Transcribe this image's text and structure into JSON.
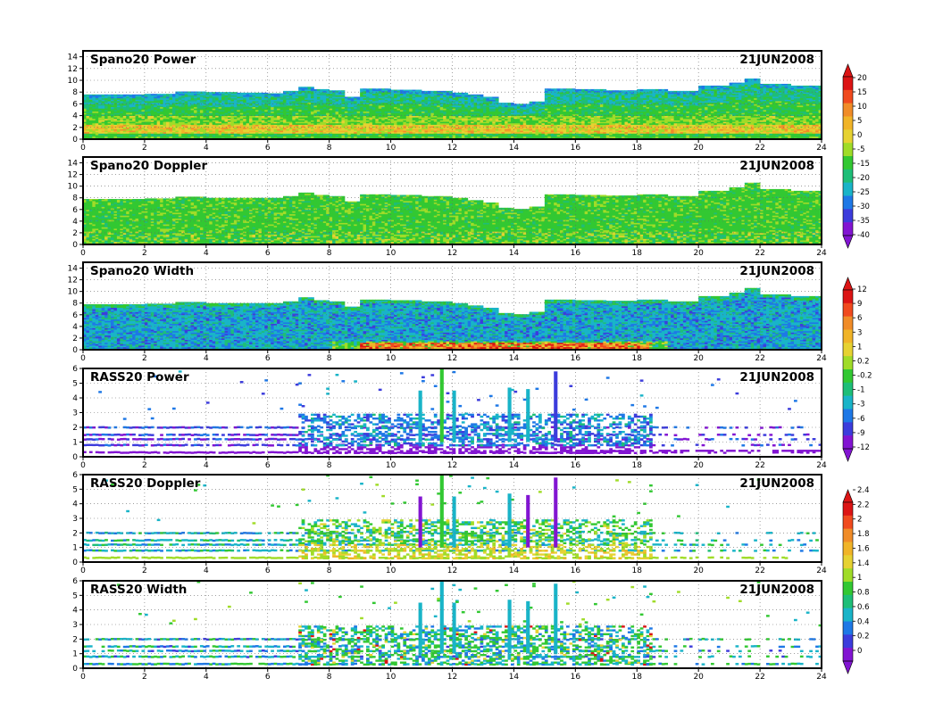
{
  "chart_data": [
    {
      "type": "heatmap",
      "title": "Spano20 Power",
      "date": "21JUN2008",
      "xlim": [
        0,
        24
      ],
      "x_ticks": [
        "0",
        "2",
        "4",
        "6",
        "8",
        "10",
        "12",
        "14",
        "16",
        "18",
        "20",
        "22",
        "24"
      ],
      "ylim": [
        0,
        15
      ],
      "y_ticks": [
        "0",
        "2",
        "4",
        "6",
        "8",
        "10",
        "12",
        "14"
      ],
      "colorbar": {
        "labels": [
          "20",
          "15",
          "10",
          "5",
          "0",
          "-5",
          "-15",
          "-20",
          "-25",
          "-30",
          "-35",
          "-40"
        ],
        "colors": [
          "#dc1414",
          "#f04a1e",
          "#f08c28",
          "#f0b428",
          "#e6d232",
          "#a0dc28",
          "#32c832",
          "#1ebe78",
          "#19b4c8",
          "#1e78e6",
          "#3c3cdc",
          "#8214d2"
        ]
      },
      "top_profile": [
        [
          0,
          7.6
        ],
        [
          2,
          7.7
        ],
        [
          3,
          8.1
        ],
        [
          4,
          8.0
        ],
        [
          5,
          7.9
        ],
        [
          6,
          7.8
        ],
        [
          6.5,
          8.2
        ],
        [
          7,
          8.9
        ],
        [
          7.5,
          8.5
        ],
        [
          8,
          8.3
        ],
        [
          8.5,
          7.2
        ],
        [
          9,
          8.6
        ],
        [
          10,
          8.4
        ],
        [
          11,
          8.2
        ],
        [
          12,
          7.9
        ],
        [
          12.5,
          7.6
        ],
        [
          13,
          7.2
        ],
        [
          13.5,
          6.2
        ],
        [
          14,
          6.0
        ],
        [
          14.5,
          6.4
        ],
        [
          15,
          8.6
        ],
        [
          16,
          8.5
        ],
        [
          17,
          8.3
        ],
        [
          18,
          8.5
        ],
        [
          19,
          8.2
        ],
        [
          20,
          9.1
        ],
        [
          21,
          9.6
        ],
        [
          21.5,
          10.3
        ],
        [
          22,
          9.4
        ],
        [
          23,
          9.1
        ],
        [
          24,
          9.0
        ]
      ]
    },
    {
      "type": "heatmap",
      "title": "Spano20 Doppler",
      "date": "21JUN2008",
      "xlim": [
        0,
        24
      ],
      "x_ticks": [
        "0",
        "2",
        "4",
        "6",
        "8",
        "10",
        "12",
        "14",
        "16",
        "18",
        "20",
        "22",
        "24"
      ],
      "ylim": [
        0,
        15
      ],
      "y_ticks": [
        "0",
        "2",
        "4",
        "6",
        "8",
        "10",
        "12",
        "14"
      ],
      "top_profile": [
        [
          0,
          7.8
        ],
        [
          2,
          7.9
        ],
        [
          3,
          8.2
        ],
        [
          4,
          8.0
        ],
        [
          5,
          8.0
        ],
        [
          6,
          8.0
        ],
        [
          6.5,
          8.3
        ],
        [
          7,
          8.9
        ],
        [
          7.5,
          8.5
        ],
        [
          8,
          8.3
        ],
        [
          8.5,
          7.4
        ],
        [
          9,
          8.6
        ],
        [
          10,
          8.5
        ],
        [
          11,
          8.3
        ],
        [
          12,
          8.0
        ],
        [
          12.5,
          7.6
        ],
        [
          13,
          7.2
        ],
        [
          13.5,
          6.3
        ],
        [
          14,
          6.1
        ],
        [
          14.5,
          6.5
        ],
        [
          15,
          8.6
        ],
        [
          16,
          8.5
        ],
        [
          17,
          8.4
        ],
        [
          18,
          8.6
        ],
        [
          19,
          8.3
        ],
        [
          20,
          9.2
        ],
        [
          21,
          9.8
        ],
        [
          21.5,
          10.6
        ],
        [
          22,
          9.5
        ],
        [
          23,
          9.2
        ],
        [
          24,
          9.0
        ]
      ]
    },
    {
      "type": "heatmap",
      "title": "Spano20 Width",
      "date": "21JUN2008",
      "xlim": [
        0,
        24
      ],
      "x_ticks": [
        "0",
        "2",
        "4",
        "6",
        "8",
        "10",
        "12",
        "14",
        "16",
        "18",
        "20",
        "22",
        "24"
      ],
      "ylim": [
        0,
        15
      ],
      "y_ticks": [
        "0",
        "2",
        "4",
        "6",
        "8",
        "10",
        "12",
        "14"
      ],
      "colorbar": {
        "labels": [
          "12",
          "9",
          "6",
          "3",
          "1",
          "0.2",
          "-0.2",
          "-1",
          "-3",
          "-6",
          "-9",
          "-12"
        ],
        "colors": [
          "#dc1414",
          "#f04a1e",
          "#f08c28",
          "#f0b428",
          "#e6d232",
          "#a0dc28",
          "#32c832",
          "#1ebe78",
          "#19b4c8",
          "#1e78e6",
          "#3c3cdc",
          "#8214d2"
        ]
      },
      "top_profile": [
        [
          0,
          7.8
        ],
        [
          2,
          7.9
        ],
        [
          3,
          8.2
        ],
        [
          4,
          8.0
        ],
        [
          5,
          8.0
        ],
        [
          6,
          8.0
        ],
        [
          6.5,
          8.3
        ],
        [
          7,
          9.0
        ],
        [
          7.5,
          8.5
        ],
        [
          8,
          8.3
        ],
        [
          8.5,
          7.4
        ],
        [
          9,
          8.6
        ],
        [
          10,
          8.5
        ],
        [
          11,
          8.3
        ],
        [
          12,
          8.0
        ],
        [
          12.5,
          7.6
        ],
        [
          13,
          7.2
        ],
        [
          13.5,
          6.3
        ],
        [
          14,
          6.1
        ],
        [
          14.5,
          6.5
        ],
        [
          15,
          8.6
        ],
        [
          16,
          8.5
        ],
        [
          17,
          8.4
        ],
        [
          18,
          8.6
        ],
        [
          19,
          8.3
        ],
        [
          20,
          9.2
        ],
        [
          21,
          9.8
        ],
        [
          21.5,
          10.6
        ],
        [
          22,
          9.5
        ],
        [
          23,
          9.2
        ],
        [
          24,
          9.0
        ]
      ]
    },
    {
      "type": "heatmap",
      "title": "RASS20 Power",
      "date": "21JUN2008",
      "xlim": [
        0,
        24
      ],
      "x_ticks": [
        "0",
        "2",
        "4",
        "6",
        "8",
        "10",
        "12",
        "14",
        "16",
        "18",
        "20",
        "22",
        "24"
      ],
      "ylim": [
        0,
        6
      ],
      "y_ticks": [
        "0",
        "1",
        "2",
        "3",
        "4",
        "5",
        "6"
      ]
    },
    {
      "type": "heatmap",
      "title": "RASS20 Doppler",
      "date": "21JUN2008",
      "xlim": [
        0,
        24
      ],
      "x_ticks": [
        "0",
        "2",
        "4",
        "6",
        "8",
        "10",
        "12",
        "14",
        "16",
        "18",
        "20",
        "22",
        "24"
      ],
      "ylim": [
        0,
        6
      ],
      "y_ticks": [
        "0",
        "1",
        "2",
        "3",
        "4",
        "5",
        "6"
      ],
      "colorbar": {
        "labels": [
          "2.4",
          "2.2",
          "2",
          "1.8",
          "1.6",
          "1.4",
          "1",
          "0.8",
          "0.6",
          "0.4",
          "0.2",
          "0"
        ],
        "colors": [
          "#dc1414",
          "#f04a1e",
          "#f08c28",
          "#f0b428",
          "#e6d232",
          "#a0dc28",
          "#32c832",
          "#1ebe78",
          "#19b4c8",
          "#1e78e6",
          "#3c3cdc",
          "#8214d2"
        ]
      }
    },
    {
      "type": "heatmap",
      "title": "RASS20 Width",
      "date": "21JUN2008",
      "xlim": [
        0,
        24
      ],
      "x_ticks": [
        "0",
        "2",
        "4",
        "6",
        "8",
        "10",
        "12",
        "14",
        "16",
        "18",
        "20",
        "22",
        "24"
      ],
      "ylim": [
        0,
        6
      ],
      "y_ticks": [
        "0",
        "1",
        "2",
        "3",
        "4",
        "5",
        "6"
      ]
    }
  ]
}
